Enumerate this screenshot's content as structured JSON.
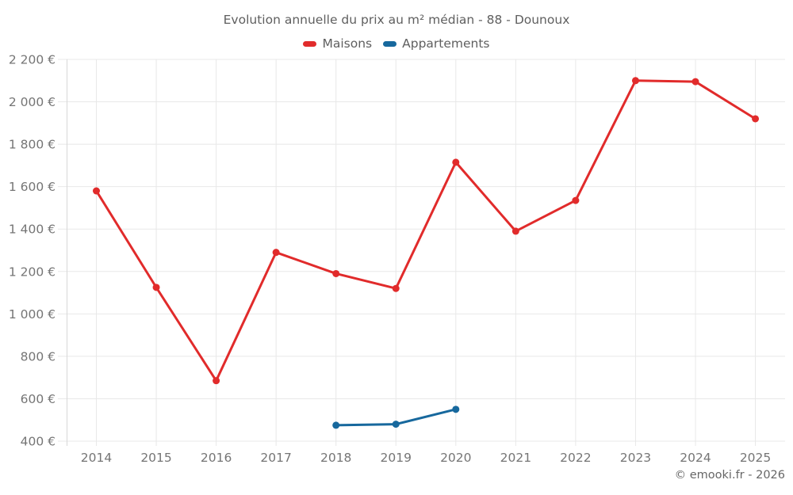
{
  "title": "Evolution annuelle du prix au m² médian - 88 - Dounoux",
  "footer": {
    "copyright": "© emooki.fr - 2026"
  },
  "colors": {
    "maisons": "#e12b2b",
    "appartements": "#17689d",
    "grid": "#e8e8e8",
    "axis": "#d8d8d8",
    "tick_label": "#757575"
  },
  "chart_data": {
    "type": "line",
    "title": "Evolution annuelle du prix au m² médian - 88 - Dounoux",
    "categories": [
      "2014",
      "2015",
      "2016",
      "2017",
      "2018",
      "2019",
      "2020",
      "2021",
      "2022",
      "2023",
      "2024",
      "2025"
    ],
    "series": [
      {
        "name": "Maisons",
        "color": "#e12b2b",
        "values": [
          1580,
          1125,
          685,
          1290,
          1190,
          1120,
          1715,
          1390,
          1535,
          2100,
          2095,
          1920
        ]
      },
      {
        "name": "Appartements",
        "color": "#17689d",
        "values": [
          null,
          null,
          null,
          null,
          475,
          480,
          550,
          null,
          null,
          null,
          null,
          null
        ]
      }
    ],
    "ylim": [
      400,
      2200
    ],
    "yticks": [
      {
        "v": 400,
        "label": "400 €"
      },
      {
        "v": 600,
        "label": "600 €"
      },
      {
        "v": 800,
        "label": "800 €"
      },
      {
        "v": 1000,
        "label": "1 000 €"
      },
      {
        "v": 1200,
        "label": "1 200 €"
      },
      {
        "v": 1400,
        "label": "1 400 €"
      },
      {
        "v": 1600,
        "label": "1 600 €"
      },
      {
        "v": 1800,
        "label": "1 800 €"
      },
      {
        "v": 2000,
        "label": "2 000 €"
      },
      {
        "v": 2200,
        "label": "2 200 €"
      }
    ],
    "grid": true,
    "legend_position": "top",
    "xlabel": "",
    "ylabel": ""
  }
}
